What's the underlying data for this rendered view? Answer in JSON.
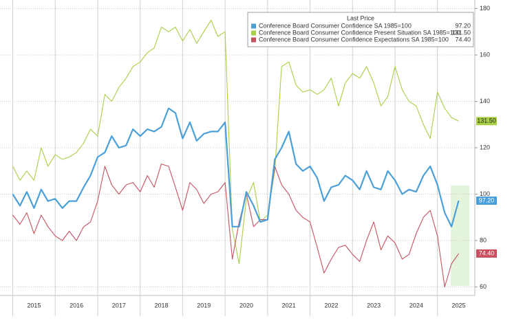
{
  "chart_data": {
    "type": "line",
    "legend_title": "Last Price",
    "x": [
      2015,
      2015.17,
      2015.33,
      2015.5,
      2015.67,
      2015.83,
      2016,
      2016.17,
      2016.33,
      2016.5,
      2016.67,
      2016.83,
      2017,
      2017.17,
      2017.33,
      2017.5,
      2017.67,
      2017.83,
      2018,
      2018.17,
      2018.33,
      2018.5,
      2018.67,
      2018.83,
      2019,
      2019.17,
      2019.33,
      2019.5,
      2019.67,
      2019.83,
      2020,
      2020.17,
      2020.33,
      2020.5,
      2020.67,
      2020.83,
      2021,
      2021.17,
      2021.33,
      2021.5,
      2021.67,
      2021.83,
      2022,
      2022.17,
      2022.33,
      2022.5,
      2022.67,
      2022.83,
      2023,
      2023.17,
      2023.33,
      2023.5,
      2023.67,
      2023.83,
      2024,
      2024.17,
      2024.33,
      2024.5,
      2024.67,
      2024.83,
      2025,
      2025.17,
      2025.33,
      2025.5
    ],
    "series": [
      {
        "name": "Conference Board Consumer Confidence SA 1985=100",
        "color": "#4a9fd8",
        "last_price_label": "97.20",
        "values": [
          100,
          95,
          101,
          94,
          102,
          97,
          98,
          94,
          97,
          97,
          103,
          108,
          116,
          118,
          125,
          120,
          121,
          128,
          125,
          128,
          127,
          129,
          137,
          135,
          124,
          131,
          123,
          126,
          127,
          127,
          131,
          86,
          86,
          101,
          95,
          88,
          89,
          115,
          120,
          127,
          113,
          110,
          112,
          107,
          97,
          103,
          104,
          108,
          106,
          102,
          110,
          103,
          102,
          110,
          106,
          100,
          102,
          101,
          108,
          112,
          104,
          92,
          86,
          97.2
        ]
      },
      {
        "name": "Conference Board Consumer Confidence Present Situation SA 1985=100",
        "color": "#a8cf45",
        "last_price_label": "131.50",
        "values": [
          112,
          106,
          110,
          106,
          120,
          112,
          117,
          115,
          116,
          118,
          122,
          128,
          125,
          143,
          140,
          146,
          150,
          155,
          157,
          161,
          163,
          172,
          170,
          172,
          166,
          171,
          165,
          170,
          175,
          168,
          170,
          85,
          70,
          98,
          105,
          88,
          91,
          110,
          155,
          157,
          147,
          144,
          145,
          143,
          145,
          150,
          138,
          148,
          152,
          150,
          155,
          148,
          138,
          142,
          155,
          145,
          140,
          138,
          130,
          124,
          144,
          137,
          133,
          131.5
        ]
      },
      {
        "name": "Conference Board Consumer Confidence Expectations SA 1985=100",
        "color": "#c8505f",
        "last_price_label": "74.40",
        "values": [
          91,
          87,
          92,
          83,
          91,
          86,
          82,
          80,
          84,
          80,
          86,
          88,
          97,
          112,
          104,
          100,
          104,
          105,
          101,
          108,
          103,
          113,
          112,
          103,
          93,
          105,
          102,
          96,
          100,
          101,
          105,
          72,
          88,
          100,
          86,
          89,
          89,
          112,
          104,
          100,
          93,
          90,
          88,
          77,
          66,
          72,
          77,
          78,
          74,
          71,
          80,
          88,
          76,
          82,
          79,
          72,
          74,
          83,
          90,
          93,
          82,
          60,
          70,
          74.4
        ]
      }
    ],
    "xlim": [
      2014.7,
      2025.88
    ],
    "xticks": [
      2015,
      2016,
      2017,
      2018,
      2019,
      2020,
      2021,
      2022,
      2023,
      2024,
      2025
    ],
    "ylim": [
      56.3,
      183.7
    ],
    "yticks": [
      60,
      80,
      100,
      120,
      140,
      160,
      180
    ],
    "grid": true,
    "legend_position": "upper right"
  }
}
